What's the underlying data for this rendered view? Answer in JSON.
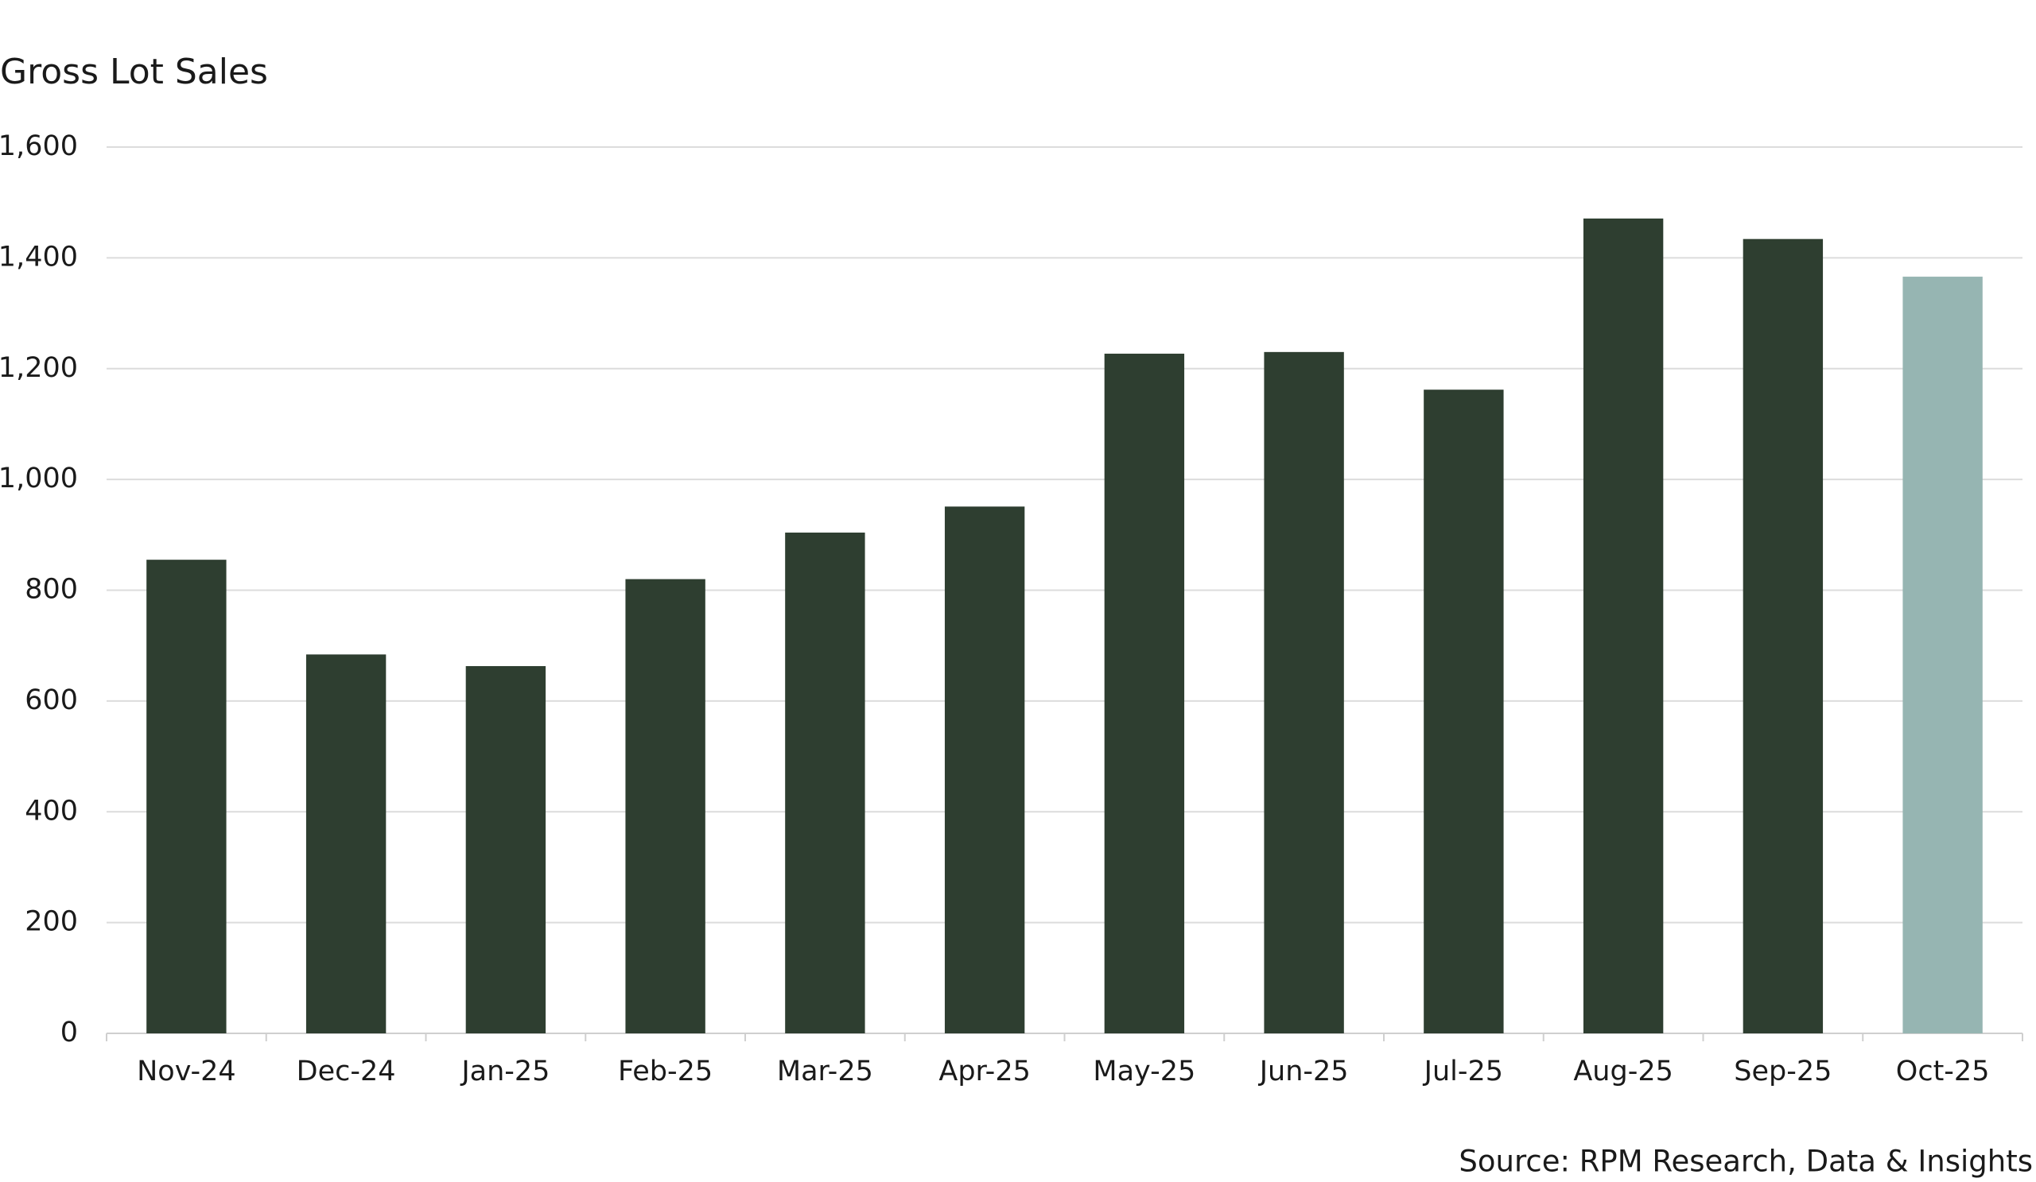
{
  "chart_data": {
    "type": "bar",
    "title": "Gross Lot Sales",
    "categories": [
      "Nov-24",
      "Dec-24",
      "Jan-25",
      "Feb-25",
      "Mar-25",
      "Apr-25",
      "May-25",
      "Jun-25",
      "Jul-25",
      "Aug-25",
      "Sep-25",
      "Oct-25"
    ],
    "values": [
      855,
      684,
      663,
      820,
      904,
      951,
      1227,
      1230,
      1162,
      1471,
      1434,
      1366
    ],
    "colors": [
      "#2e3e30",
      "#2e3e30",
      "#2e3e30",
      "#2e3e30",
      "#2e3e30",
      "#2e3e30",
      "#2e3e30",
      "#2e3e30",
      "#2e3e30",
      "#2e3e30",
      "#2e3e30",
      "#96b5b2"
    ],
    "ylim": [
      0,
      1600
    ],
    "yticks": [
      0,
      200,
      400,
      600,
      800,
      {
        "value": 1000,
        "label": "1,000"
      },
      {
        "value": 1200,
        "label": "1,200"
      },
      {
        "value": 1400,
        "label": "1,400"
      },
      {
        "value": 1600,
        "label": "1,600"
      }
    ],
    "grid": true,
    "source": "Source: RPM Research, Data & Insights"
  }
}
